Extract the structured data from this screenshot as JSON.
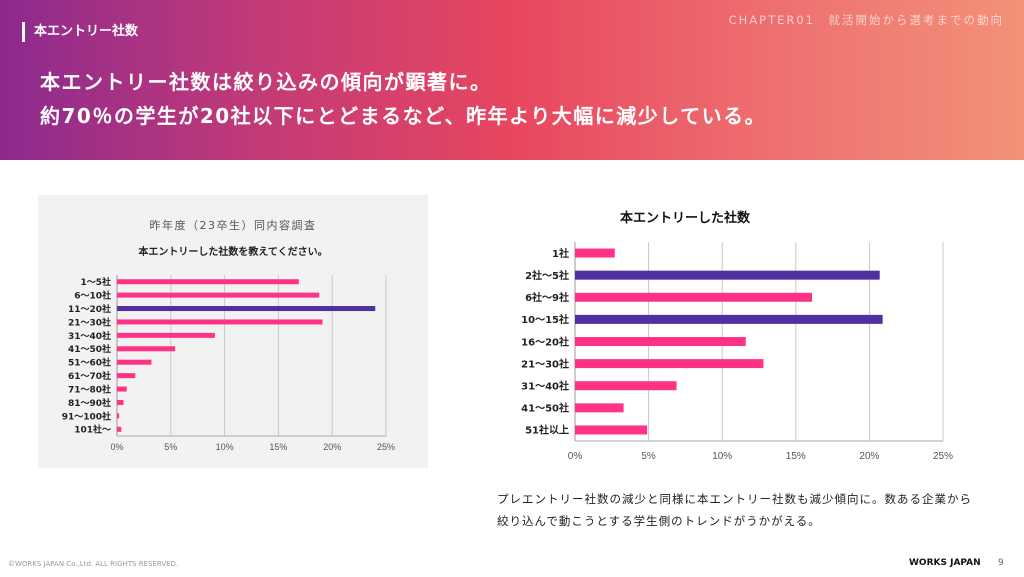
{
  "header": {
    "section_label": "本エントリー社数",
    "chapter": "CHAPTER01　就活開始から選考までの動向",
    "headline_1": "本エントリー社数は絞り込みの傾向が顕著に。",
    "headline_2": "約70％の学生が20社以下にとどまるなど、昨年より大幅に減少している。"
  },
  "colors": {
    "pink": "#ff3385",
    "purple": "#5030a0"
  },
  "chart_data": [
    {
      "type": "bar",
      "orientation": "horizontal",
      "title": "昨年度（23卒生）同内容調査",
      "subtitle": "本エントリーした社数を教えてください。",
      "categories": [
        "1～5社",
        "6～10社",
        "11～20社",
        "21～30社",
        "31～40社",
        "41～50社",
        "51～60社",
        "61～70社",
        "71～80社",
        "81～90社",
        "91～100社",
        "101社～"
      ],
      "values": [
        16.9,
        18.8,
        24.0,
        19.1,
        9.1,
        5.4,
        3.2,
        1.7,
        0.9,
        0.6,
        0.2,
        0.4
      ],
      "highlight": [
        2
      ],
      "xlim": [
        0,
        25
      ],
      "xticks": [
        "0%",
        "5%",
        "10%",
        "15%",
        "20%",
        "25%"
      ],
      "grid": true
    },
    {
      "type": "bar",
      "orientation": "horizontal",
      "title": "本エントリーした社数",
      "categories": [
        "1社",
        "2社～5社",
        "6社～9社",
        "10～15社",
        "16～20社",
        "21～30社",
        "31～40社",
        "41～50社",
        "51社以上"
      ],
      "values": [
        2.7,
        20.7,
        16.1,
        20.9,
        11.6,
        12.8,
        6.9,
        3.3,
        4.9
      ],
      "highlight": [
        1,
        3
      ],
      "xlim": [
        0,
        25
      ],
      "xticks": [
        "0%",
        "5%",
        "10%",
        "15%",
        "20%",
        "25%"
      ],
      "grid": true
    }
  ],
  "caption": "プレエントリー社数の減少と同様に本エントリー社数も減少傾向に。数ある企業から絞り込んで動こうとする学生側のトレンドがうかがえる。",
  "footer": {
    "copyright": "©WORKS JAPAN Co.,Ltd. ALL RIGHTS RESERVED.",
    "logo": "WORKS JAPAN",
    "page": "9"
  }
}
